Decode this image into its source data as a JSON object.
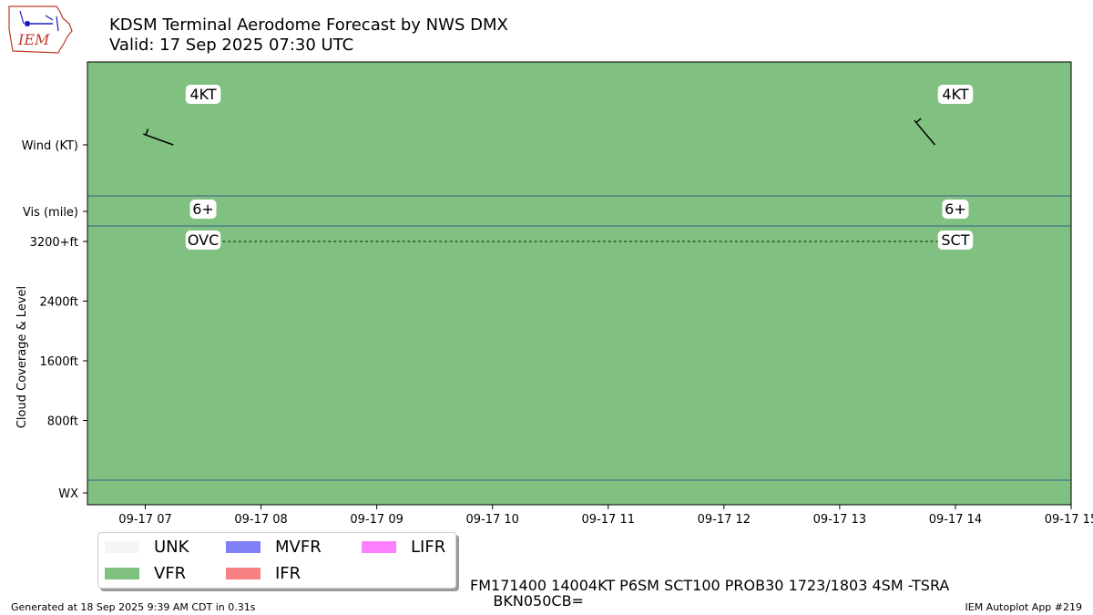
{
  "title": "KDSM Terminal Aerodome Forecast by NWS DMX",
  "subtitle": "Valid: 17 Sep 2025 07:30 UTC",
  "logo_text": "IEM",
  "y_axis_title": "Cloud Coverage & Level",
  "row_labels": {
    "wind": "Wind (KT)",
    "vis": "Vis (mile)",
    "wx": "WX"
  },
  "colors": {
    "vfr": "#80c080",
    "frame": "#000000",
    "separator": "#3b5e8a",
    "logo_red": "#c0392b",
    "logo_blue": "#1f1fc0"
  },
  "chart_data": {
    "type": "timeline",
    "x_axis": {
      "type": "time",
      "range": [
        "2025-09-17 06:30",
        "2025-09-17 15:00"
      ],
      "tick_labels": [
        "09-17 07",
        "09-17 08",
        "09-17 09",
        "09-17 10",
        "09-17 11",
        "09-17 12",
        "09-17 13",
        "09-17 14",
        "09-17 15"
      ],
      "tick_hours": [
        7,
        8,
        9,
        10,
        11,
        12,
        13,
        14,
        15
      ]
    },
    "cloud_axis": {
      "ticks": [
        800,
        1600,
        2400,
        3200
      ],
      "tick_labels": [
        "800ft",
        "1600ft",
        "2400ft",
        "3200+ft"
      ],
      "range": [
        0,
        3200
      ]
    },
    "background_category": "VFR",
    "forecasts": [
      {
        "hour": 7.5,
        "wind_speed_label": "4KT",
        "wind_dir_deg": 290,
        "wind_speed": 4,
        "vis": "6+",
        "cloud_cover": "OVC",
        "cloud_level_ft": 3200
      },
      {
        "hour": 14.0,
        "wind_speed_label": "4KT",
        "wind_dir_deg": 320,
        "wind_speed": 4,
        "vis": "6+",
        "cloud_cover": "SCT",
        "cloud_level_ft": 3200
      }
    ],
    "cloud_line": {
      "from_hour": 7.5,
      "to_hour": 14.0,
      "level_ft": 3200,
      "style": "dotted"
    }
  },
  "legend": [
    {
      "label": "UNK",
      "color": "#f5f5f5"
    },
    {
      "label": "MVFR",
      "color": "#8080f8"
    },
    {
      "label": "LIFR",
      "color": "#ff80ff"
    },
    {
      "label": "VFR",
      "color": "#80c080"
    },
    {
      "label": "IFR",
      "color": "#f88080"
    }
  ],
  "taf_text": "FM171400 14004KT P6SM SCT100 PROB30 1723/1803 4SM -TSRA\n     BKN050CB=",
  "footer_left": "Generated at 18 Sep 2025 9:39 AM CDT in 0.31s",
  "footer_right": "IEM Autoplot App #219"
}
